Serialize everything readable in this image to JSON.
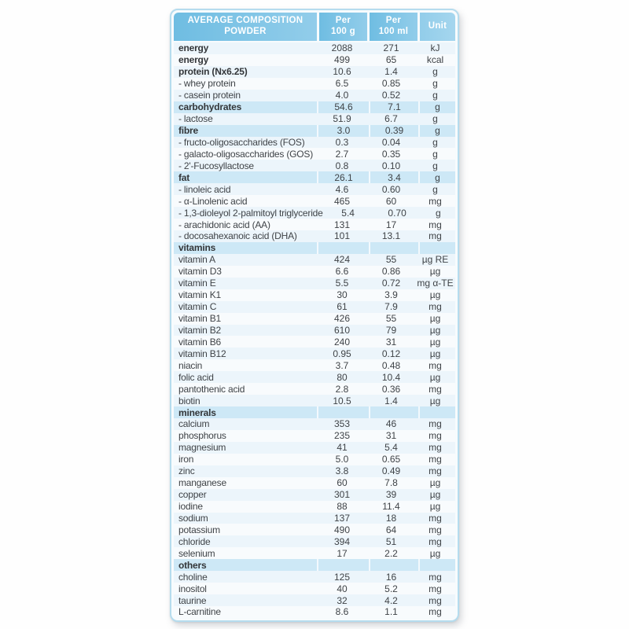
{
  "colors": {
    "header_blue_dark": "#6fbde2",
    "header_blue_light": "#92cdea",
    "section_blue": "#cde8f6",
    "stripe_light": "#ecf5fb",
    "stripe_white": "#f8fbfd",
    "border_blue": "#b5dcee",
    "text": "#3f4347"
  },
  "table": {
    "header": {
      "title": "AVERAGE COMPOSITION\nPOWDER",
      "col_per_100g": "Per\n100 g",
      "col_per_100ml": "Per\n100 ml",
      "col_unit": "Unit"
    },
    "rows": [
      {
        "label": "energy",
        "per_100g": "2088",
        "per_100ml": "271",
        "unit": "kJ",
        "style": "bold"
      },
      {
        "label": "energy",
        "per_100g": "499",
        "per_100ml": "65",
        "unit": "kcal",
        "style": "bold"
      },
      {
        "label": "protein (Nx6.25)",
        "per_100g": "10.6",
        "per_100ml": "1.4",
        "unit": "g",
        "style": "bold"
      },
      {
        "label": "- whey protein",
        "per_100g": "6.5",
        "per_100ml": "0.85",
        "unit": "g",
        "style": "normal"
      },
      {
        "label": "- casein protein",
        "per_100g": "4.0",
        "per_100ml": "0.52",
        "unit": "g",
        "style": "normal"
      },
      {
        "label": "carbohydrates",
        "per_100g": "54.6",
        "per_100ml": "7.1",
        "unit": "g",
        "style": "section"
      },
      {
        "label": "- lactose",
        "per_100g": "51.9",
        "per_100ml": "6.7",
        "unit": "g",
        "style": "normal"
      },
      {
        "label": "fibre",
        "per_100g": "3.0",
        "per_100ml": "0.39",
        "unit": "g",
        "style": "section"
      },
      {
        "label": "- fructo-oligosaccharides (FOS)",
        "per_100g": "0.3",
        "per_100ml": "0.04",
        "unit": "g",
        "style": "normal"
      },
      {
        "label": "- galacto-oligosaccharides (GOS)",
        "per_100g": "2.7",
        "per_100ml": "0.35",
        "unit": "g",
        "style": "normal"
      },
      {
        "label": "- 2'-Fucosyllactose",
        "per_100g": "0.8",
        "per_100ml": "0.10",
        "unit": "g",
        "style": "normal"
      },
      {
        "label": "fat",
        "per_100g": "26.1",
        "per_100ml": "3.4",
        "unit": "g",
        "style": "section"
      },
      {
        "label": "- linoleic acid",
        "per_100g": "4.6",
        "per_100ml": "0.60",
        "unit": "g",
        "style": "normal"
      },
      {
        "label": "- α-Linolenic acid",
        "per_100g": "465",
        "per_100ml": "60",
        "unit": "mg",
        "style": "normal"
      },
      {
        "label": "- 1,3-dioleyol 2-palmitoyl triglyceride",
        "per_100g": "5.4",
        "per_100ml": "0.70",
        "unit": "g",
        "style": "normal"
      },
      {
        "label": "- arachidonic acid (AA)",
        "per_100g": "131",
        "per_100ml": "17",
        "unit": "mg",
        "style": "normal"
      },
      {
        "label": "- docosahexanoic acid (DHA)",
        "per_100g": "101",
        "per_100ml": "13.1",
        "unit": "mg",
        "style": "normal"
      },
      {
        "label": "vitamins",
        "per_100g": "",
        "per_100ml": "",
        "unit": "",
        "style": "heading"
      },
      {
        "label": "vitamin A",
        "per_100g": "424",
        "per_100ml": "55",
        "unit": "µg RE",
        "style": "normal"
      },
      {
        "label": "vitamin D3",
        "per_100g": "6.6",
        "per_100ml": "0.86",
        "unit": "µg",
        "style": "normal"
      },
      {
        "label": "vitamin E",
        "per_100g": "5.5",
        "per_100ml": "0.72",
        "unit": "mg α-TE",
        "style": "normal"
      },
      {
        "label": "vitamin K1",
        "per_100g": "30",
        "per_100ml": "3.9",
        "unit": "µg",
        "style": "normal"
      },
      {
        "label": "vitamin C",
        "per_100g": "61",
        "per_100ml": "7.9",
        "unit": "mg",
        "style": "normal"
      },
      {
        "label": "vitamin B1",
        "per_100g": "426",
        "per_100ml": "55",
        "unit": "µg",
        "style": "normal"
      },
      {
        "label": "vitamin B2",
        "per_100g": "610",
        "per_100ml": "79",
        "unit": "µg",
        "style": "normal"
      },
      {
        "label": "vitamin B6",
        "per_100g": "240",
        "per_100ml": "31",
        "unit": "µg",
        "style": "normal"
      },
      {
        "label": "vitamin B12",
        "per_100g": "0.95",
        "per_100ml": "0.12",
        "unit": "µg",
        "style": "normal"
      },
      {
        "label": "niacin",
        "per_100g": "3.7",
        "per_100ml": "0.48",
        "unit": "mg",
        "style": "normal"
      },
      {
        "label": "folic acid",
        "per_100g": "80",
        "per_100ml": "10.4",
        "unit": "µg",
        "style": "normal"
      },
      {
        "label": "pantothenic acid",
        "per_100g": "2.8",
        "per_100ml": "0.36",
        "unit": "mg",
        "style": "normal"
      },
      {
        "label": "biotin",
        "per_100g": "10.5",
        "per_100ml": "1.4",
        "unit": "µg",
        "style": "normal"
      },
      {
        "label": "minerals",
        "per_100g": "",
        "per_100ml": "",
        "unit": "",
        "style": "heading"
      },
      {
        "label": "calcium",
        "per_100g": "353",
        "per_100ml": "46",
        "unit": "mg",
        "style": "normal"
      },
      {
        "label": "phosphorus",
        "per_100g": "235",
        "per_100ml": "31",
        "unit": "mg",
        "style": "normal"
      },
      {
        "label": "magnesium",
        "per_100g": "41",
        "per_100ml": "5.4",
        "unit": "mg",
        "style": "normal"
      },
      {
        "label": "iron",
        "per_100g": "5.0",
        "per_100ml": "0.65",
        "unit": "mg",
        "style": "normal"
      },
      {
        "label": "zinc",
        "per_100g": "3.8",
        "per_100ml": "0.49",
        "unit": "mg",
        "style": "normal"
      },
      {
        "label": "manganese",
        "per_100g": "60",
        "per_100ml": "7.8",
        "unit": "µg",
        "style": "normal"
      },
      {
        "label": "copper",
        "per_100g": "301",
        "per_100ml": "39",
        "unit": "µg",
        "style": "normal"
      },
      {
        "label": "iodine",
        "per_100g": "88",
        "per_100ml": "11.4",
        "unit": "µg",
        "style": "normal"
      },
      {
        "label": "sodium",
        "per_100g": "137",
        "per_100ml": "18",
        "unit": "mg",
        "style": "normal"
      },
      {
        "label": "potassium",
        "per_100g": "490",
        "per_100ml": "64",
        "unit": "mg",
        "style": "normal"
      },
      {
        "label": "chloride",
        "per_100g": "394",
        "per_100ml": "51",
        "unit": "mg",
        "style": "normal"
      },
      {
        "label": "selenium",
        "per_100g": "17",
        "per_100ml": "2.2",
        "unit": "µg",
        "style": "normal"
      },
      {
        "label": "others",
        "per_100g": "",
        "per_100ml": "",
        "unit": "",
        "style": "heading"
      },
      {
        "label": "choline",
        "per_100g": "125",
        "per_100ml": "16",
        "unit": "mg",
        "style": "normal"
      },
      {
        "label": "inositol",
        "per_100g": "40",
        "per_100ml": "5.2",
        "unit": "mg",
        "style": "normal"
      },
      {
        "label": "taurine",
        "per_100g": "32",
        "per_100ml": "4.2",
        "unit": "mg",
        "style": "normal"
      },
      {
        "label": "L-carnitine",
        "per_100g": "8.6",
        "per_100ml": "1.1",
        "unit": "mg",
        "style": "normal"
      }
    ]
  }
}
